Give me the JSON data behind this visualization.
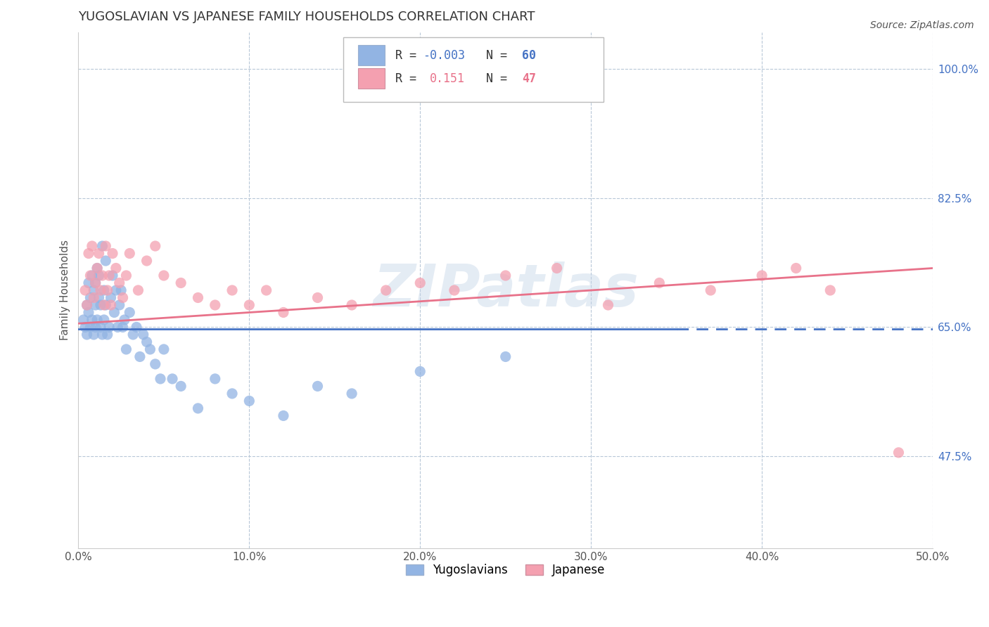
{
  "title": "YUGOSLAVIAN VS JAPANESE FAMILY HOUSEHOLDS CORRELATION CHART",
  "source": "Source: ZipAtlas.com",
  "ylabel": "Family Households",
  "xlim": [
    0.0,
    0.5
  ],
  "ylim": [
    0.35,
    1.05
  ],
  "yticks": [
    0.475,
    0.65,
    0.825,
    1.0
  ],
  "ytick_labels": [
    "47.5%",
    "65.0%",
    "82.5%",
    "100.0%"
  ],
  "xticks": [
    0.0,
    0.1,
    0.2,
    0.3,
    0.4,
    0.5
  ],
  "xtick_labels": [
    "0.0%",
    "10.0%",
    "20.0%",
    "30.0%",
    "40.0%",
    "50.0%"
  ],
  "yug_color": "#92b4e3",
  "jap_color": "#f4a0b0",
  "yug_line_color": "#4472c4",
  "jap_line_color": "#e8728a",
  "legend_yug_label": "Yugoslavians",
  "legend_jap_label": "Japanese",
  "r_yug": -0.003,
  "n_yug": 60,
  "r_jap": 0.151,
  "n_jap": 47,
  "background_color": "#ffffff",
  "watermark": "ZIPatlas",
  "grid_color": "#b8c8d8",
  "yug_x": [
    0.003,
    0.004,
    0.005,
    0.005,
    0.006,
    0.006,
    0.007,
    0.007,
    0.008,
    0.008,
    0.009,
    0.009,
    0.01,
    0.01,
    0.01,
    0.011,
    0.011,
    0.012,
    0.012,
    0.013,
    0.013,
    0.014,
    0.014,
    0.015,
    0.015,
    0.016,
    0.016,
    0.017,
    0.018,
    0.019,
    0.02,
    0.021,
    0.022,
    0.023,
    0.024,
    0.025,
    0.026,
    0.027,
    0.028,
    0.03,
    0.032,
    0.034,
    0.036,
    0.038,
    0.04,
    0.042,
    0.045,
    0.048,
    0.05,
    0.055,
    0.06,
    0.07,
    0.08,
    0.09,
    0.1,
    0.12,
    0.14,
    0.16,
    0.2,
    0.25
  ],
  "yug_y": [
    0.66,
    0.65,
    0.68,
    0.64,
    0.71,
    0.67,
    0.69,
    0.65,
    0.72,
    0.66,
    0.7,
    0.64,
    0.68,
    0.71,
    0.65,
    0.73,
    0.66,
    0.69,
    0.72,
    0.65,
    0.68,
    0.76,
    0.64,
    0.7,
    0.66,
    0.74,
    0.68,
    0.64,
    0.65,
    0.69,
    0.72,
    0.67,
    0.7,
    0.65,
    0.68,
    0.7,
    0.65,
    0.66,
    0.62,
    0.67,
    0.64,
    0.65,
    0.61,
    0.64,
    0.63,
    0.62,
    0.6,
    0.58,
    0.62,
    0.58,
    0.57,
    0.54,
    0.58,
    0.56,
    0.55,
    0.53,
    0.57,
    0.56,
    0.59,
    0.61
  ],
  "jap_x": [
    0.004,
    0.005,
    0.006,
    0.007,
    0.008,
    0.009,
    0.01,
    0.011,
    0.012,
    0.013,
    0.014,
    0.015,
    0.016,
    0.017,
    0.018,
    0.019,
    0.02,
    0.022,
    0.024,
    0.026,
    0.028,
    0.03,
    0.035,
    0.04,
    0.045,
    0.05,
    0.06,
    0.07,
    0.08,
    0.09,
    0.1,
    0.11,
    0.12,
    0.14,
    0.16,
    0.18,
    0.2,
    0.22,
    0.25,
    0.28,
    0.31,
    0.34,
    0.37,
    0.4,
    0.42,
    0.44,
    0.48
  ],
  "jap_y": [
    0.7,
    0.68,
    0.75,
    0.72,
    0.76,
    0.69,
    0.71,
    0.73,
    0.75,
    0.7,
    0.72,
    0.68,
    0.76,
    0.7,
    0.72,
    0.68,
    0.75,
    0.73,
    0.71,
    0.69,
    0.72,
    0.75,
    0.7,
    0.74,
    0.76,
    0.72,
    0.71,
    0.69,
    0.68,
    0.7,
    0.68,
    0.7,
    0.67,
    0.69,
    0.68,
    0.7,
    0.71,
    0.7,
    0.72,
    0.73,
    0.68,
    0.71,
    0.7,
    0.72,
    0.73,
    0.7,
    0.48
  ]
}
